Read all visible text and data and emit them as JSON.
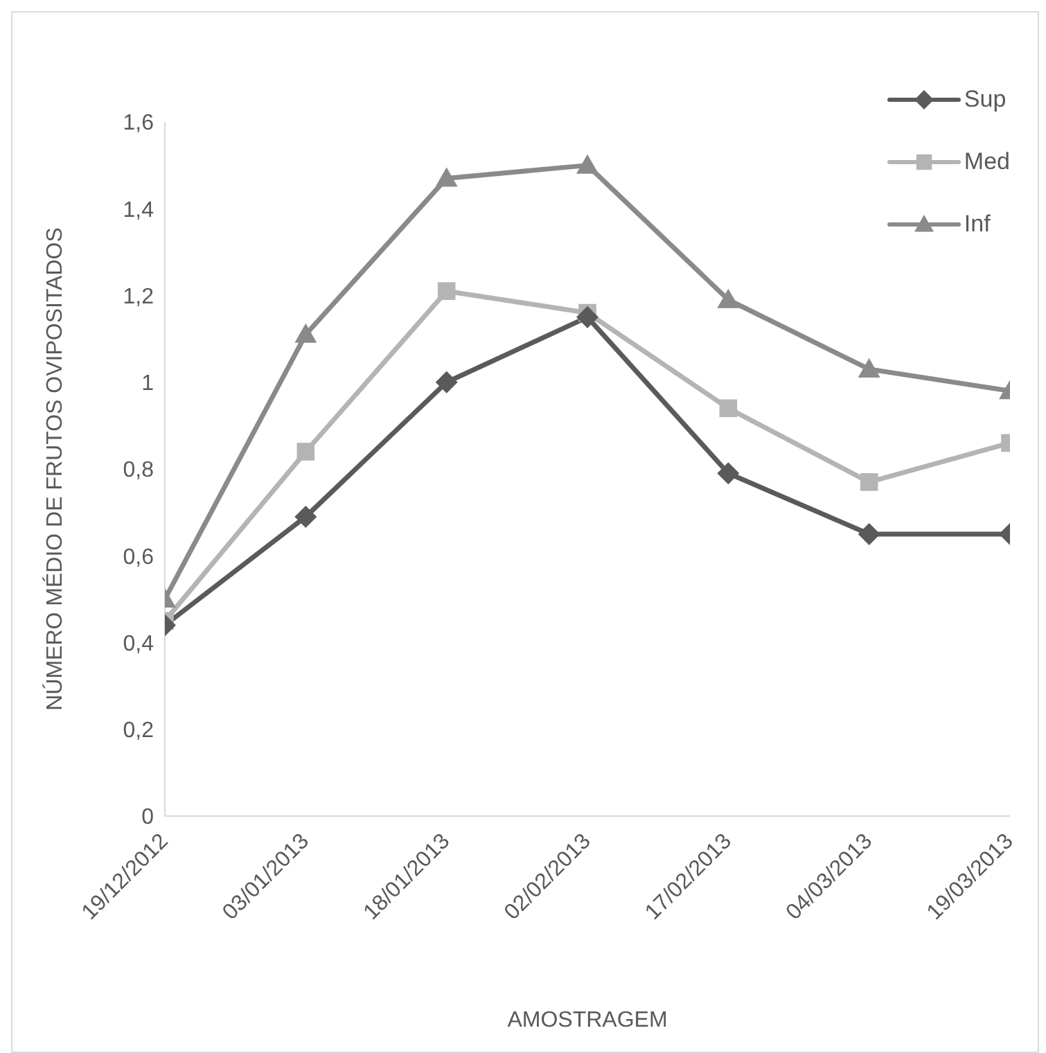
{
  "chart_data": {
    "type": "line",
    "xlabel": "AMOSTRAGEM",
    "ylabel": "NÚMERO MÉDIO DE FRUTOS OVIPOSITADOS",
    "categories": [
      "19/12/2012",
      "03/01/2013",
      "18/01/2013",
      "02/02/2013",
      "17/02/2013",
      "04/03/2013",
      "19/03/2013"
    ],
    "series": [
      {
        "name": "Sup",
        "color": "#5a5a5a",
        "marker": "diamond",
        "values": [
          0.44,
          0.69,
          1.0,
          1.15,
          0.79,
          0.65,
          0.65
        ]
      },
      {
        "name": "Med",
        "color": "#b4b4b4",
        "marker": "square",
        "values": [
          0.45,
          0.84,
          1.21,
          1.16,
          0.94,
          0.77,
          0.86
        ]
      },
      {
        "name": "Inf",
        "color": "#8a8a8a",
        "marker": "triangle",
        "values": [
          0.5,
          1.11,
          1.47,
          1.5,
          1.19,
          1.03,
          0.98
        ]
      }
    ],
    "ylim": [
      0,
      1.6
    ],
    "yticks": [
      0,
      {
        "value": 0.2,
        "label": "0,2"
      },
      {
        "value": 0.4,
        "label": "0,4"
      },
      {
        "value": 0.6,
        "label": "0,6"
      },
      {
        "value": 0.8,
        "label": "0,8"
      },
      1,
      {
        "value": 1.2,
        "label": "1,2"
      },
      {
        "value": 1.4,
        "label": "1,4"
      },
      {
        "value": 1.6,
        "label": "1,6"
      }
    ],
    "grid": false,
    "legend": "top right"
  }
}
